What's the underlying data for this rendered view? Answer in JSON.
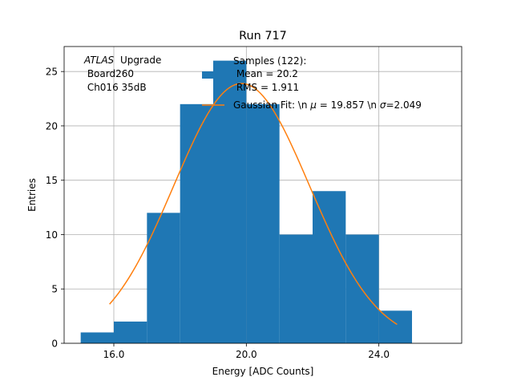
{
  "chart_data": {
    "type": "bar",
    "title": "Run 717",
    "xlabel": "Energy [ADC Counts]",
    "ylabel": "Entries",
    "xlim": [
      14.5,
      26.5
    ],
    "ylim": [
      0,
      27.3
    ],
    "grid": true,
    "xticks": [
      16,
      20,
      24
    ],
    "xtick_labels": [
      "16.0",
      "20.0",
      "24.0"
    ],
    "yticks": [
      0,
      5,
      10,
      15,
      20,
      25
    ],
    "ytick_labels": [
      "0",
      "5",
      "10",
      "15",
      "20",
      "25"
    ],
    "histogram": {
      "name": "Samples (122):\n Mean = 20.2\n RMS = 1.911",
      "bin_edges": [
        15,
        16,
        17,
        18,
        19,
        20,
        21,
        22,
        23,
        24,
        25
      ],
      "counts": [
        1,
        2,
        12,
        22,
        26,
        22,
        10,
        14,
        10,
        3
      ],
      "color": "#1f77b4"
    },
    "fit": {
      "name": "Gaussian Fit: \\n $\\mu$ = 19.857 \\n $\\sigma$=2.049",
      "mu": 19.857,
      "sigma": 2.049,
      "amplitude": 23.9,
      "x_range": [
        15.87,
        24.55
      ],
      "color": "#ff7f0e"
    },
    "annotation_lines": [
      "Upgrade",
      " Board260",
      " Ch016 35dB"
    ],
    "annotation_italic_prefix": "ATLAS",
    "legend_position": "upper-right",
    "legend_lines_hist": [
      "Samples (122):",
      " Mean = 20.2",
      " RMS = 1.911"
    ],
    "legend_line_fit_prefix": "Gaussian Fit: \\n ",
    "legend_line_fit_mu": " = 19.857 \\n ",
    "legend_line_fit_sigma": "=2.049",
    "mu_symbol": "μ",
    "sigma_symbol": "σ"
  }
}
